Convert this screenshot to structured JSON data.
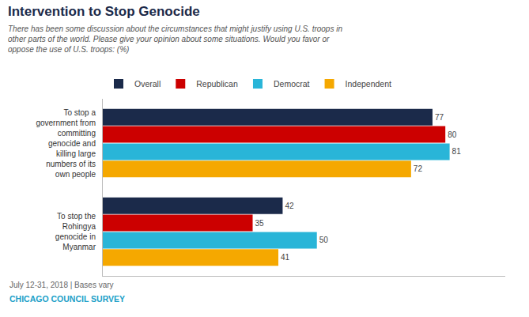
{
  "chart_data": {
    "type": "bar",
    "orientation": "horizontal",
    "title": "Intervention to Stop Genocide",
    "subtitle": "There has been some discussion about the circumstances that might justify using U.S. troops in\nother parts of the world. Please give your opinion about some situations. Would you favor or\noppose the use of U.S. troops: (%)",
    "categories": [
      "To stop a\ngovernment from\ncommitting\ngenocide and\nkilling large\nnumbers of its\nown people",
      "To stop the\nRohingya\ngenocide in\nMyanmar"
    ],
    "series": [
      {
        "name": "Overall",
        "color": "#1b2a4a",
        "values": [
          77,
          42
        ]
      },
      {
        "name": "Republican",
        "color": "#cc0000",
        "values": [
          80,
          35
        ]
      },
      {
        "name": "Democrat",
        "color": "#29b5d8",
        "values": [
          81,
          50
        ]
      },
      {
        "name": "Independent",
        "color": "#f5a800",
        "values": [
          72,
          41
        ]
      }
    ],
    "xlim": [
      0,
      94
    ],
    "tick_labels": "y",
    "data_labels": true,
    "grid": false,
    "legend": "top left",
    "annotations": [
      {
        "text": "July 12-31, 2018 | Bases vary"
      },
      {
        "text": "CHICAGO COUNCIL SURVEY",
        "color": "#1ba0c8"
      }
    ]
  }
}
